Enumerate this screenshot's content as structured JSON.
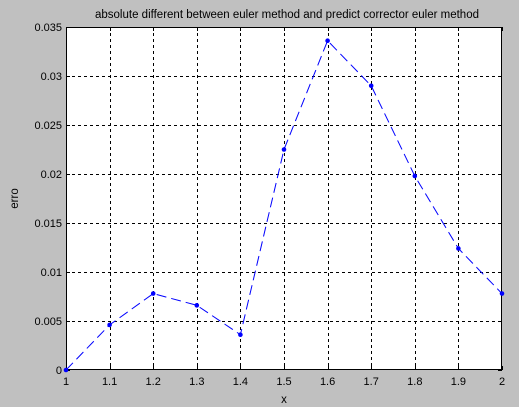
{
  "chart_data": {
    "type": "line",
    "title": "absolute different between euler method and predict corrector euler method",
    "xlabel": "x",
    "ylabel": "erro",
    "xlim": [
      1,
      2
    ],
    "ylim": [
      0,
      0.035
    ],
    "grid": true,
    "x_ticks": [
      1,
      1.1,
      1.2,
      1.3,
      1.4,
      1.5,
      1.6,
      1.7,
      1.8,
      1.9,
      2
    ],
    "x_tick_labels": [
      "1",
      "1.1",
      "1.2",
      "1.3",
      "1.4",
      "1.5",
      "1.6",
      "1.7",
      "1.8",
      "1.9",
      "2"
    ],
    "y_ticks": [
      0,
      0.005,
      0.01,
      0.015,
      0.02,
      0.025,
      0.03,
      0.035
    ],
    "y_tick_labels": [
      "0",
      "0.005",
      "0.01",
      "0.015",
      "0.02",
      "0.025",
      "0.03",
      "0.035"
    ],
    "series": [
      {
        "x": [
          1.0,
          1.1,
          1.2,
          1.3,
          1.4,
          1.5,
          1.6,
          1.7,
          1.8,
          1.9,
          2.0
        ],
        "y": [
          0.0,
          0.0046,
          0.0078,
          0.0066,
          0.0036,
          0.0225,
          0.0336,
          0.029,
          0.0198,
          0.0124,
          0.0078
        ],
        "color": "#0000ff",
        "line_style": "dashed",
        "marker": "dot"
      }
    ]
  },
  "colors": {
    "figure_background": "#c0c0c0",
    "plot_background": "#ffffff",
    "axes": "#000000",
    "grid": "#000000",
    "series": "#0000ff"
  }
}
